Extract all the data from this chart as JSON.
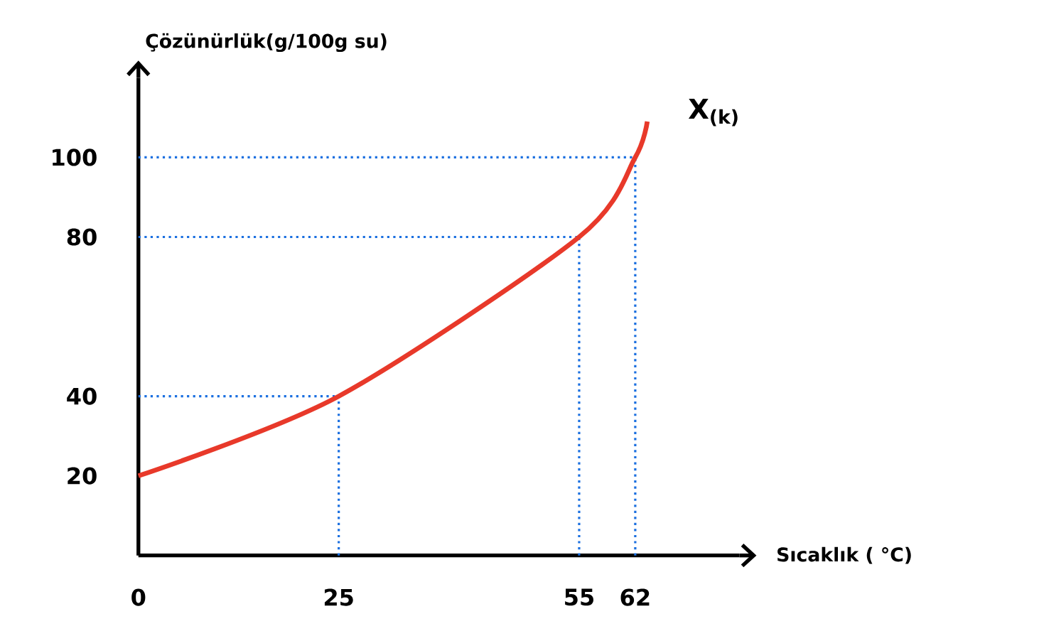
{
  "chart_data": {
    "type": "line",
    "xlabel": "Sıcaklık ( °C)",
    "ylabel": "Çözünürlük(g/100g su)",
    "series": [
      {
        "name": "X$_{(k)}$",
        "color": "#e8392a",
        "x": [
          0,
          25,
          55,
          62,
          63.5
        ],
        "values": [
          20,
          40,
          80,
          100,
          109
        ]
      }
    ],
    "xlim": [
      0,
      75
    ],
    "ylim": [
      0,
      120
    ],
    "xticks": [
      0,
      25,
      55,
      62
    ],
    "yticks": [
      20,
      40,
      80,
      100
    ],
    "grid": false,
    "legend": false,
    "marker": "none",
    "line_style": "solid",
    "ref_lines": [
      {
        "axis": "y",
        "value": 100,
        "color": "#1a6fe0",
        "line_style": "dotted"
      },
      {
        "axis": "y",
        "value": 80,
        "color": "#1a6fe0",
        "line_style": "dotted"
      },
      {
        "axis": "y",
        "value": 40,
        "color": "#1a6fe0",
        "line_style": "dotted"
      },
      {
        "axis": "x",
        "value": 25,
        "color": "#1a6fe0",
        "line_style": "dotted"
      },
      {
        "axis": "x",
        "value": 55,
        "color": "#1a6fe0",
        "line_style": "dotted"
      },
      {
        "axis": "x",
        "value": 62,
        "color": "#1a6fe0",
        "line_style": "dotted"
      }
    ]
  }
}
